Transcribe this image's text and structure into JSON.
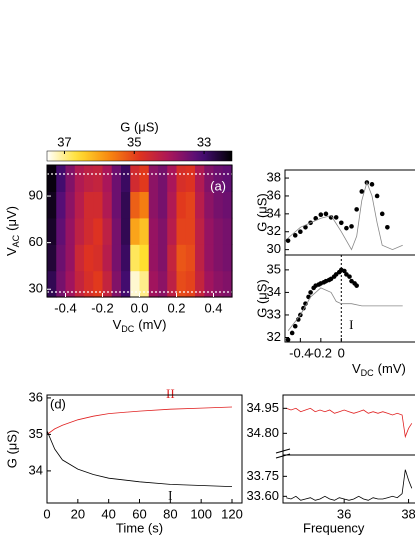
{
  "chart_data": [
    {
      "type": "heatmap",
      "panel_label": "(a)",
      "colorbar_title": "G (μS)",
      "clim": [
        37.5,
        32.2
      ],
      "cticks": [
        37,
        35,
        33
      ],
      "colorscale": [
        "#000000",
        "#4a0d7a",
        "#a8155c",
        "#e0341e",
        "#f88a10",
        "#ffe030",
        "#ffffff"
      ],
      "xlabel": [
        "V",
        "DC",
        "(mV)"
      ],
      "ylabel": [
        "V",
        "AC",
        "(μV)"
      ],
      "xlim": [
        -0.5,
        0.5
      ],
      "ylim": [
        25,
        110
      ],
      "xticks": [
        -0.4,
        -0.2,
        {
          "value": 0,
          "label": "0.0"
        },
        0.2,
        0.4
      ],
      "yticks": [
        30,
        60,
        90
      ],
      "xbins": [
        -0.5,
        -0.45,
        -0.4,
        -0.35,
        -0.3,
        -0.25,
        -0.2,
        -0.15,
        -0.1,
        -0.05,
        0,
        0.05,
        0.1,
        0.15,
        0.2,
        0.25,
        0.3,
        0.35,
        0.4,
        0.45,
        0.5
      ],
      "ybins": [
        25,
        42,
        59,
        76,
        93,
        110
      ],
      "z": [
        [
          32.8,
          33.5,
          33.9,
          34.4,
          34.7,
          34.9,
          34.4,
          33.6,
          33.0,
          37.3,
          37.0,
          33.9,
          33.7,
          34.3,
          35.1,
          35.0,
          34.4,
          33.9,
          33.7,
          33.6
        ],
        [
          32.6,
          33.4,
          33.8,
          34.5,
          34.8,
          34.7,
          34.2,
          33.5,
          32.9,
          36.8,
          36.6,
          33.8,
          33.6,
          34.4,
          35.2,
          35.1,
          34.3,
          33.8,
          33.6,
          33.5
        ],
        [
          32.5,
          33.3,
          33.8,
          34.3,
          34.6,
          34.8,
          34.3,
          33.5,
          32.8,
          36.0,
          36.3,
          33.8,
          33.6,
          34.2,
          35.0,
          35.0,
          34.3,
          33.8,
          33.6,
          33.5
        ],
        [
          32.4,
          33.2,
          33.7,
          34.2,
          34.6,
          34.6,
          34.1,
          33.4,
          32.8,
          35.3,
          35.6,
          33.7,
          33.5,
          34.1,
          34.9,
          35.0,
          34.2,
          33.7,
          33.5,
          33.4
        ],
        [
          32.3,
          33.0,
          33.6,
          34.1,
          34.3,
          34.4,
          34.0,
          33.4,
          32.9,
          34.6,
          34.9,
          33.7,
          33.5,
          34.0,
          34.7,
          34.8,
          34.1,
          33.6,
          33.4,
          33.3
        ]
      ]
    },
    {
      "type": "line",
      "ylabel": "G (μS)",
      "xlim": [
        -0.55,
        0.72
      ],
      "ylim": [
        29.4,
        38.9
      ],
      "yticks": [
        30,
        32,
        34,
        36,
        38
      ],
      "series": [
        {
          "color": "#000000",
          "style": "dots",
          "x": [
            -0.52,
            -0.45,
            -0.4,
            -0.35,
            -0.3,
            -0.25,
            -0.2,
            -0.15,
            -0.1,
            -0.05,
            0,
            0.05,
            0.1,
            0.15,
            0.2,
            0.25,
            0.3,
            0.35,
            0.4,
            0.45
          ],
          "values": [
            31.0,
            31.6,
            32.0,
            32.5,
            33.0,
            33.5,
            33.9,
            34.0,
            33.6,
            33.6,
            33.0,
            32.4,
            32.6,
            34.5,
            36.5,
            37.5,
            37.3,
            36.0,
            34.0,
            32.5
          ]
        },
        {
          "color": "#888888",
          "style": "line",
          "x": [
            -0.52,
            -0.4,
            -0.3,
            -0.2,
            -0.1,
            0,
            0.1,
            0.15,
            0.2,
            0.25,
            0.3,
            0.35,
            0.4,
            0.5,
            0.6
          ],
          "values": [
            31.3,
            32.5,
            33.0,
            33.5,
            33.8,
            32.0,
            30.0,
            31.5,
            35.5,
            37.5,
            36.0,
            33.0,
            30.5,
            30.0,
            30.5
          ]
        }
      ]
    },
    {
      "type": "line",
      "ylabel": "G (μS)",
      "xlabel": [
        "V",
        "DC",
        "(mV)"
      ],
      "annotation": "I",
      "vline": 0,
      "xlim": [
        -0.55,
        0.72
      ],
      "ylim": [
        31.8,
        35.66
      ],
      "xticks": [
        -0.4,
        -0.2,
        0
      ],
      "yticks": [
        32,
        33,
        34,
        35
      ],
      "series": [
        {
          "color": "#000000",
          "style": "dots",
          "x": [
            -0.52,
            -0.48,
            -0.45,
            -0.42,
            -0.4,
            -0.37,
            -0.35,
            -0.32,
            -0.3,
            -0.27,
            -0.25,
            -0.22,
            -0.2,
            -0.17,
            -0.15,
            -0.12,
            -0.1,
            -0.07,
            -0.05,
            -0.02,
            0,
            0.03,
            0.05,
            0.08,
            0.1,
            0.13,
            0.15
          ],
          "values": [
            31.9,
            32.2,
            32.5,
            32.8,
            33.0,
            33.3,
            33.5,
            33.8,
            34.0,
            34.2,
            34.3,
            34.35,
            34.4,
            34.45,
            34.5,
            34.55,
            34.6,
            34.7,
            34.8,
            34.9,
            35.0,
            34.95,
            34.8,
            34.7,
            34.5,
            34.4,
            34.3
          ]
        },
        {
          "color": "#888888",
          "style": "line",
          "x": [
            -0.52,
            -0.4,
            -0.3,
            -0.2,
            -0.1,
            -0.05,
            0,
            0.1,
            0.2,
            0.4,
            0.6
          ],
          "values": [
            32.3,
            33.0,
            33.8,
            34.2,
            34.0,
            33.6,
            33.5,
            33.5,
            33.4,
            33.4,
            33.4
          ]
        }
      ]
    },
    {
      "type": "line",
      "panel_label": "(d)",
      "ylabel": "G (μS)",
      "xlabel": "Time (s)",
      "xlim": [
        0,
        120
      ],
      "ylim": [
        33.12,
        36.08
      ],
      "xticks": [
        0,
        20,
        40,
        60,
        80,
        100,
        120
      ],
      "yticks": [
        34,
        35,
        36
      ],
      "series": [
        {
          "name": "II",
          "color": "#e02020",
          "style": "line",
          "x": [
            0,
            5,
            10,
            20,
            30,
            40,
            60,
            80,
            100,
            120
          ],
          "values": [
            35.0,
            35.15,
            35.25,
            35.4,
            35.5,
            35.57,
            35.64,
            35.69,
            35.72,
            35.75
          ]
        },
        {
          "name": "I",
          "color": "#000000",
          "style": "line",
          "x": [
            0,
            5,
            10,
            20,
            30,
            40,
            60,
            80,
            100,
            120
          ],
          "values": [
            35.1,
            34.6,
            34.3,
            34.05,
            33.9,
            33.8,
            33.7,
            33.63,
            33.6,
            33.57
          ]
        }
      ]
    },
    {
      "type": "line",
      "xlim": [
        34.1,
        38.2
      ],
      "ylim": [
        34.67,
        35.03
      ],
      "yticks": [
        34.95,
        {
          "value": 34.8,
          "label": "34.80"
        }
      ],
      "series": [
        {
          "color": "#e02020",
          "style": "line",
          "x": [
            34.2,
            34.35,
            34.5,
            34.65,
            34.8,
            34.95,
            35.1,
            35.25,
            35.4,
            35.55,
            35.7,
            35.85,
            36.0,
            36.15,
            36.3,
            36.45,
            36.6,
            36.75,
            36.9,
            37.05,
            37.2,
            37.35,
            37.5,
            37.65,
            37.8,
            37.9,
            38.0,
            38.1
          ],
          "values": [
            34.95,
            34.94,
            34.95,
            34.93,
            34.94,
            34.95,
            34.93,
            34.94,
            34.93,
            34.94,
            34.92,
            34.93,
            34.94,
            34.93,
            34.92,
            34.93,
            34.94,
            34.92,
            34.93,
            34.92,
            34.93,
            34.92,
            34.91,
            34.92,
            34.91,
            34.78,
            34.83,
            34.86
          ]
        }
      ]
    },
    {
      "type": "line",
      "xlabel": "Frequency",
      "xlim": [
        34.1,
        38.2
      ],
      "ylim": [
        33.55,
        33.91
      ],
      "xticks": [
        36,
        38
      ],
      "yticks": [
        33.75,
        {
          "value": 33.6,
          "label": "33.60"
        }
      ],
      "series": [
        {
          "color": "#000000",
          "style": "line",
          "x": [
            34.2,
            34.35,
            34.5,
            34.65,
            34.8,
            34.95,
            35.1,
            35.25,
            35.4,
            35.55,
            35.7,
            35.85,
            36.0,
            36.15,
            36.3,
            36.45,
            36.6,
            36.75,
            36.9,
            37.05,
            37.2,
            37.35,
            37.5,
            37.65,
            37.8,
            37.9,
            38.0,
            38.1
          ],
          "values": [
            33.59,
            33.58,
            33.6,
            33.57,
            33.58,
            33.59,
            33.57,
            33.58,
            33.6,
            33.58,
            33.57,
            33.59,
            33.58,
            33.57,
            33.58,
            33.6,
            33.58,
            33.57,
            33.59,
            33.58,
            33.58,
            33.59,
            33.6,
            33.59,
            33.62,
            33.8,
            33.72,
            33.66
          ]
        }
      ]
    }
  ]
}
